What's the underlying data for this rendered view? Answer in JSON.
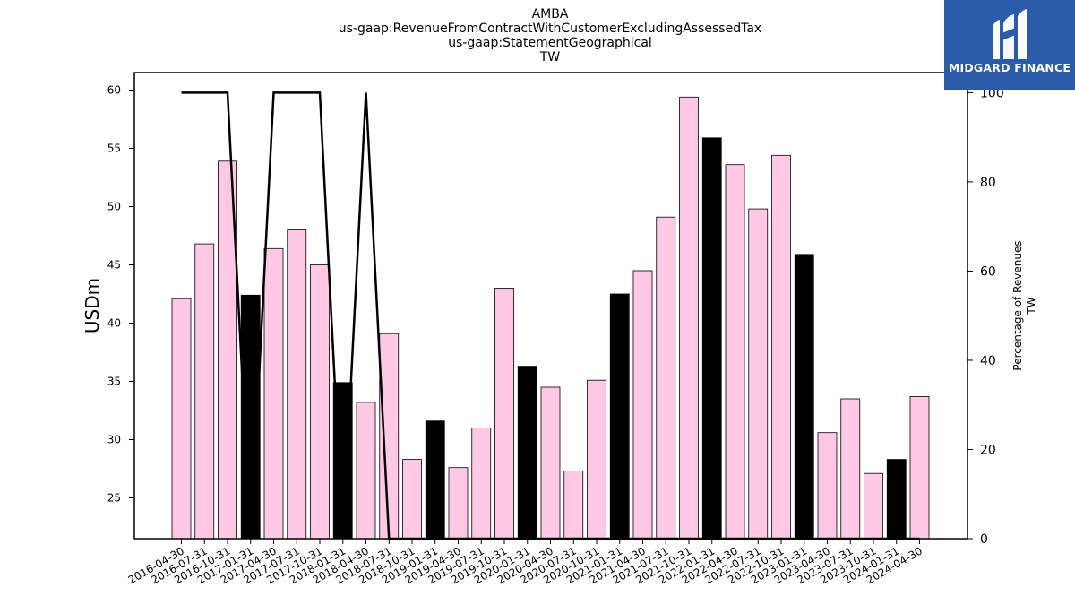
{
  "chart_data": {
    "type": "bar",
    "title_lines": [
      "AMBA",
      "us-gaap:RevenueFromContractWithCustomerExcludingAssessedTax",
      "us-gaap:StatementGeographical",
      "TW"
    ],
    "ylabel": "USDm",
    "ylabel_right": [
      "Percentage of Revenues",
      "TW"
    ],
    "ylim": [
      21.5,
      61.5
    ],
    "y_ticks": [
      25,
      30,
      35,
      40,
      45,
      50,
      55,
      60
    ],
    "ylim_right": [
      0,
      104.5
    ],
    "y_ticks_right": [
      0,
      20,
      40,
      60,
      80,
      100
    ],
    "categories": [
      "2016-04-30",
      "2016-07-31",
      "2016-10-31",
      "2017-01-31",
      "2017-04-30",
      "2017-07-31",
      "2017-10-31",
      "2018-01-31",
      "2018-04-30",
      "2018-07-31",
      "2018-10-31",
      "2019-01-31",
      "2019-04-30",
      "2019-07-31",
      "2019-10-31",
      "2020-01-31",
      "2020-04-30",
      "2020-07-31",
      "2020-10-31",
      "2021-01-31",
      "2021-04-30",
      "2021-07-31",
      "2021-10-31",
      "2022-01-31",
      "2022-04-30",
      "2022-07-31",
      "2022-10-31",
      "2023-01-31",
      "2023-04-30",
      "2023-07-31",
      "2023-10-31",
      "2024-01-31",
      "2024-04-30"
    ],
    "series": [
      {
        "kind": "bar",
        "values": [
          42.1,
          46.8,
          53.9,
          42.4,
          46.4,
          48.0,
          45.0,
          34.9,
          33.2,
          39.1,
          28.3,
          31.6,
          27.6,
          31.0,
          43.0,
          36.3,
          34.5,
          27.3,
          35.1,
          42.5,
          44.5,
          49.1,
          59.4,
          55.9,
          53.6,
          49.8,
          54.4,
          45.9,
          30.6,
          33.5,
          27.1,
          28.3,
          33.7
        ],
        "colors": [
          "#ffc8e4",
          "#ffc8e4",
          "#ffc8e4",
          "#000000",
          "#ffc8e4",
          "#ffc8e4",
          "#ffc8e4",
          "#000000",
          "#ffc8e4",
          "#ffc8e4",
          "#ffc8e4",
          "#000000",
          "#ffc8e4",
          "#ffc8e4",
          "#ffc8e4",
          "#000000",
          "#ffc8e4",
          "#ffc8e4",
          "#ffc8e4",
          "#000000",
          "#ffc8e4",
          "#ffc8e4",
          "#ffc8e4",
          "#000000",
          "#ffc8e4",
          "#ffc8e4",
          "#ffc8e4",
          "#000000",
          "#ffc8e4",
          "#ffc8e4",
          "#ffc8e4",
          "#000000",
          "#ffc8e4"
        ]
      },
      {
        "kind": "line",
        "axis": "right",
        "values": [
          100,
          100,
          100,
          0,
          100,
          100,
          100,
          0,
          100,
          0,
          0,
          0,
          0,
          0,
          0,
          0,
          0,
          0,
          0,
          0,
          0,
          0,
          0,
          0,
          0,
          0,
          0,
          0,
          0,
          0,
          0,
          0,
          0
        ],
        "color": "#000000"
      }
    ],
    "grid": false,
    "legend": "none"
  },
  "logo": {
    "text": "MIDGARD FINANCE",
    "icon": "midgard-logo-icon",
    "color": "#2a5caa"
  }
}
